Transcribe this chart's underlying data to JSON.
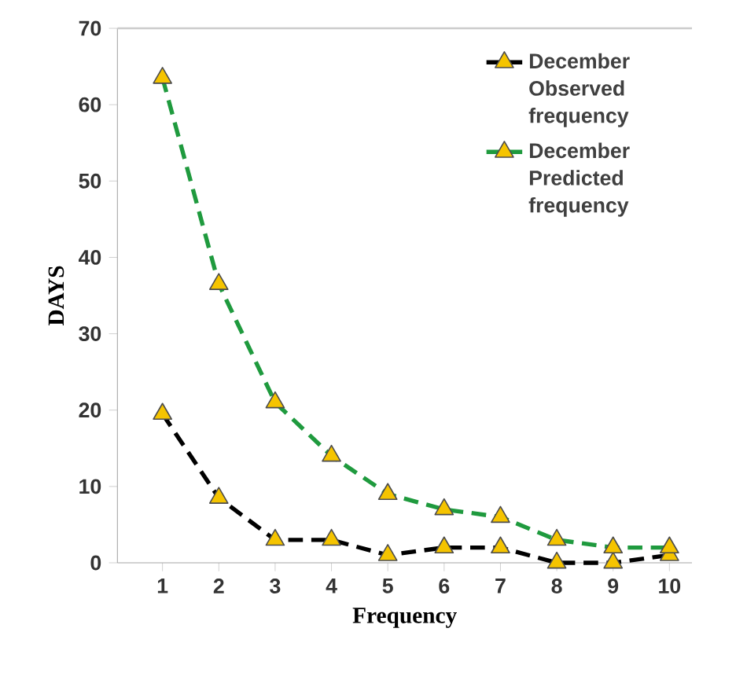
{
  "chart_data": {
    "type": "line",
    "xlabel": "Frequency",
    "ylabel": "DAYS",
    "x": [
      1,
      2,
      3,
      4,
      5,
      6,
      7,
      8,
      9,
      10
    ],
    "series": [
      {
        "name": "December Observed frequency",
        "color": "#000000",
        "values": [
          19.5,
          8.5,
          3,
          3,
          1,
          2,
          2,
          0,
          0,
          1
        ]
      },
      {
        "name": "December Predicted frequency",
        "color": "#1f9a3e",
        "values": [
          63.5,
          36.5,
          21,
          14,
          9,
          7,
          6,
          3,
          2,
          2
        ]
      }
    ],
    "xlim": [
      0.2,
      10.4
    ],
    "ylim": [
      0,
      70
    ],
    "xticks": [
      1,
      2,
      3,
      4,
      5,
      6,
      7,
      8,
      9,
      10
    ],
    "yticks": [
      0,
      10,
      20,
      30,
      40,
      50,
      60,
      70
    ],
    "marker": "triangle",
    "line_style": "dashed",
    "legend": "top right",
    "grid": false
  }
}
